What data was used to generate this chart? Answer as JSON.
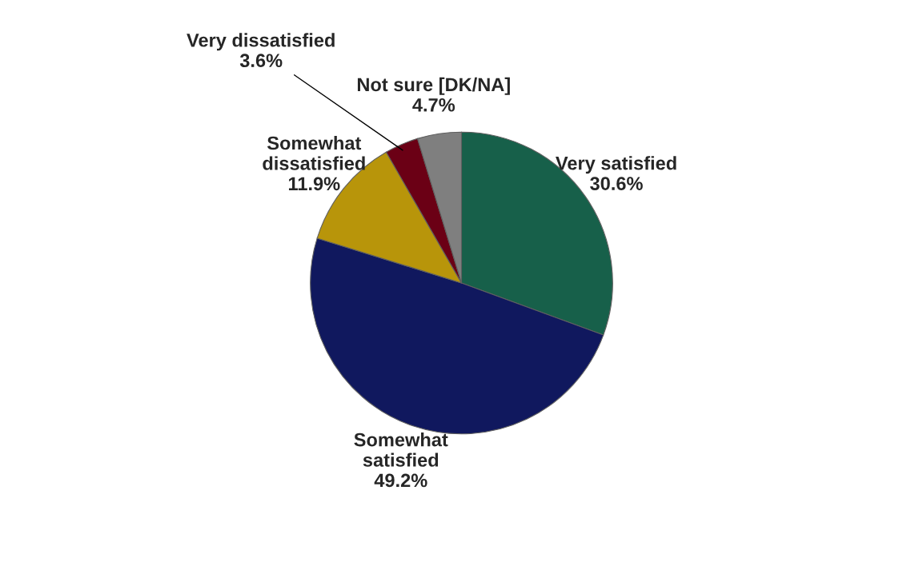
{
  "chart_data": {
    "type": "pie",
    "categories": [
      "Very satisfied",
      "Somewhat satisfied",
      "Somewhat dissatisfied",
      "Very dissatisfied",
      "Not sure [DK/NA]"
    ],
    "values": [
      30.6,
      49.2,
      11.9,
      3.6,
      4.7
    ],
    "value_labels": [
      "30.6%",
      "49.2%",
      "11.9%",
      "3.6%",
      "4.7%"
    ],
    "colors": [
      "#17604a",
      "#10185e",
      "#b8950a",
      "#6b0015",
      "#7f7f7f"
    ]
  }
}
